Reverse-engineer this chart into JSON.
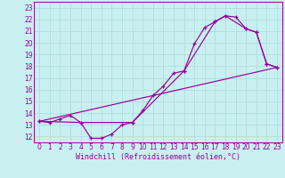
{
  "xlabel": "Windchill (Refroidissement éolien,°C)",
  "bg_color": "#c8f0f0",
  "line_color": "#990099",
  "grid_color": "#b0dede",
  "xlim": [
    -0.5,
    23.5
  ],
  "ylim": [
    11.5,
    23.5
  ],
  "xticks": [
    0,
    1,
    2,
    3,
    4,
    5,
    6,
    7,
    8,
    9,
    10,
    11,
    12,
    13,
    14,
    15,
    16,
    17,
    18,
    19,
    20,
    21,
    22,
    23
  ],
  "yticks": [
    12,
    13,
    14,
    15,
    16,
    17,
    18,
    19,
    20,
    21,
    22,
    23
  ],
  "line1_x": [
    0,
    1,
    2,
    3,
    4,
    5,
    6,
    7,
    8,
    9,
    10,
    11,
    12,
    13,
    14,
    15,
    16,
    17,
    18,
    19,
    20,
    21,
    22,
    23
  ],
  "line1_y": [
    13.3,
    13.2,
    13.5,
    13.8,
    13.2,
    11.85,
    11.85,
    12.2,
    13.0,
    13.2,
    14.2,
    15.5,
    16.3,
    17.4,
    17.6,
    19.9,
    21.3,
    21.8,
    22.3,
    22.2,
    21.2,
    20.9,
    18.2,
    17.9
  ],
  "line2_x": [
    0,
    23
  ],
  "line2_y": [
    13.3,
    17.9
  ],
  "line3_x": [
    0,
    4,
    9,
    14,
    17,
    18,
    20,
    21,
    22,
    23
  ],
  "line3_y": [
    13.3,
    13.2,
    13.2,
    17.6,
    21.8,
    22.3,
    21.2,
    20.9,
    18.2,
    17.9
  ],
  "tick_fontsize": 5.5,
  "label_fontsize": 6.0
}
